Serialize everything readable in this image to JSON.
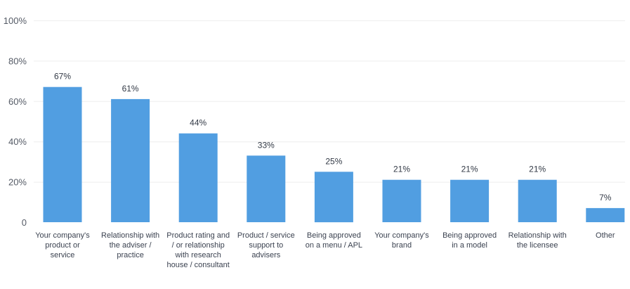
{
  "chart_data": {
    "type": "bar",
    "categories": [
      [
        "Your company's",
        "product or",
        "service"
      ],
      [
        "Relationship with",
        "the adviser /",
        "practice"
      ],
      [
        "Product rating and",
        "/ or relationship",
        "with research",
        "house / consultant"
      ],
      [
        "Product / service",
        "support to",
        "advisers"
      ],
      [
        "Being approved",
        "on a menu / APL"
      ],
      [
        "Your company's",
        "brand"
      ],
      [
        "Being approved",
        "in a model"
      ],
      [
        "Relationship with",
        "the licensee"
      ],
      [
        "Other"
      ]
    ],
    "values": [
      67,
      61,
      44,
      33,
      25,
      21,
      21,
      21,
      7
    ],
    "data_labels": [
      "67%",
      "61%",
      "44%",
      "33%",
      "25%",
      "21%",
      "21%",
      "21%",
      "7%"
    ],
    "y_ticks": [
      {
        "value": 0,
        "label": "0"
      },
      {
        "value": 20,
        "label": "20%"
      },
      {
        "value": 40,
        "label": "40%"
      },
      {
        "value": 60,
        "label": "60%"
      },
      {
        "value": 80,
        "label": "80%"
      },
      {
        "value": 100,
        "label": "100%"
      }
    ],
    "ylim": [
      0,
      100
    ],
    "grid": true,
    "colors": {
      "bar": "#519ee1",
      "grid": "#eeeeee"
    }
  }
}
